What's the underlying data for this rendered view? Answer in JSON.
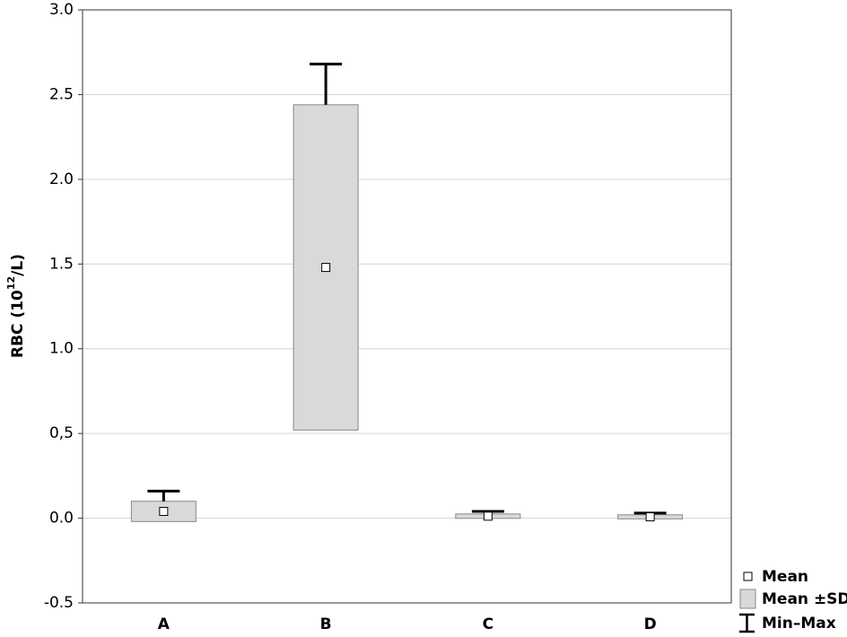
{
  "chart_data": {
    "type": "box",
    "y_label": {
      "base": "RBC (10",
      "sup": "12",
      "tail": "/L)"
    },
    "categories": [
      "A",
      "B",
      "C",
      "D"
    ],
    "mean": [
      0.04,
      1.48,
      0.012,
      0.008
    ],
    "sd": [
      0.06,
      0.96,
      0.013,
      0.012
    ],
    "min": [
      0.0,
      0.6,
      0.0,
      0.0
    ],
    "max": [
      0.16,
      2.68,
      0.04,
      0.03
    ],
    "legend": [
      "Mean",
      "Mean ±SD",
      "Min–Max"
    ],
    "box_color": "#d9d9d9",
    "ylim": [
      -0.5,
      3
    ],
    "yticks": [
      -0.5,
      {
        "value": 0,
        "label": "0.0"
      },
      {
        "value": 0.5,
        "label": "0,5"
      },
      {
        "value": 1,
        "label": "1.0"
      },
      1.5,
      {
        "value": 2,
        "label": "2.0"
      },
      2.5,
      {
        "value": 3,
        "label": "3.0"
      }
    ],
    "grid": true
  }
}
